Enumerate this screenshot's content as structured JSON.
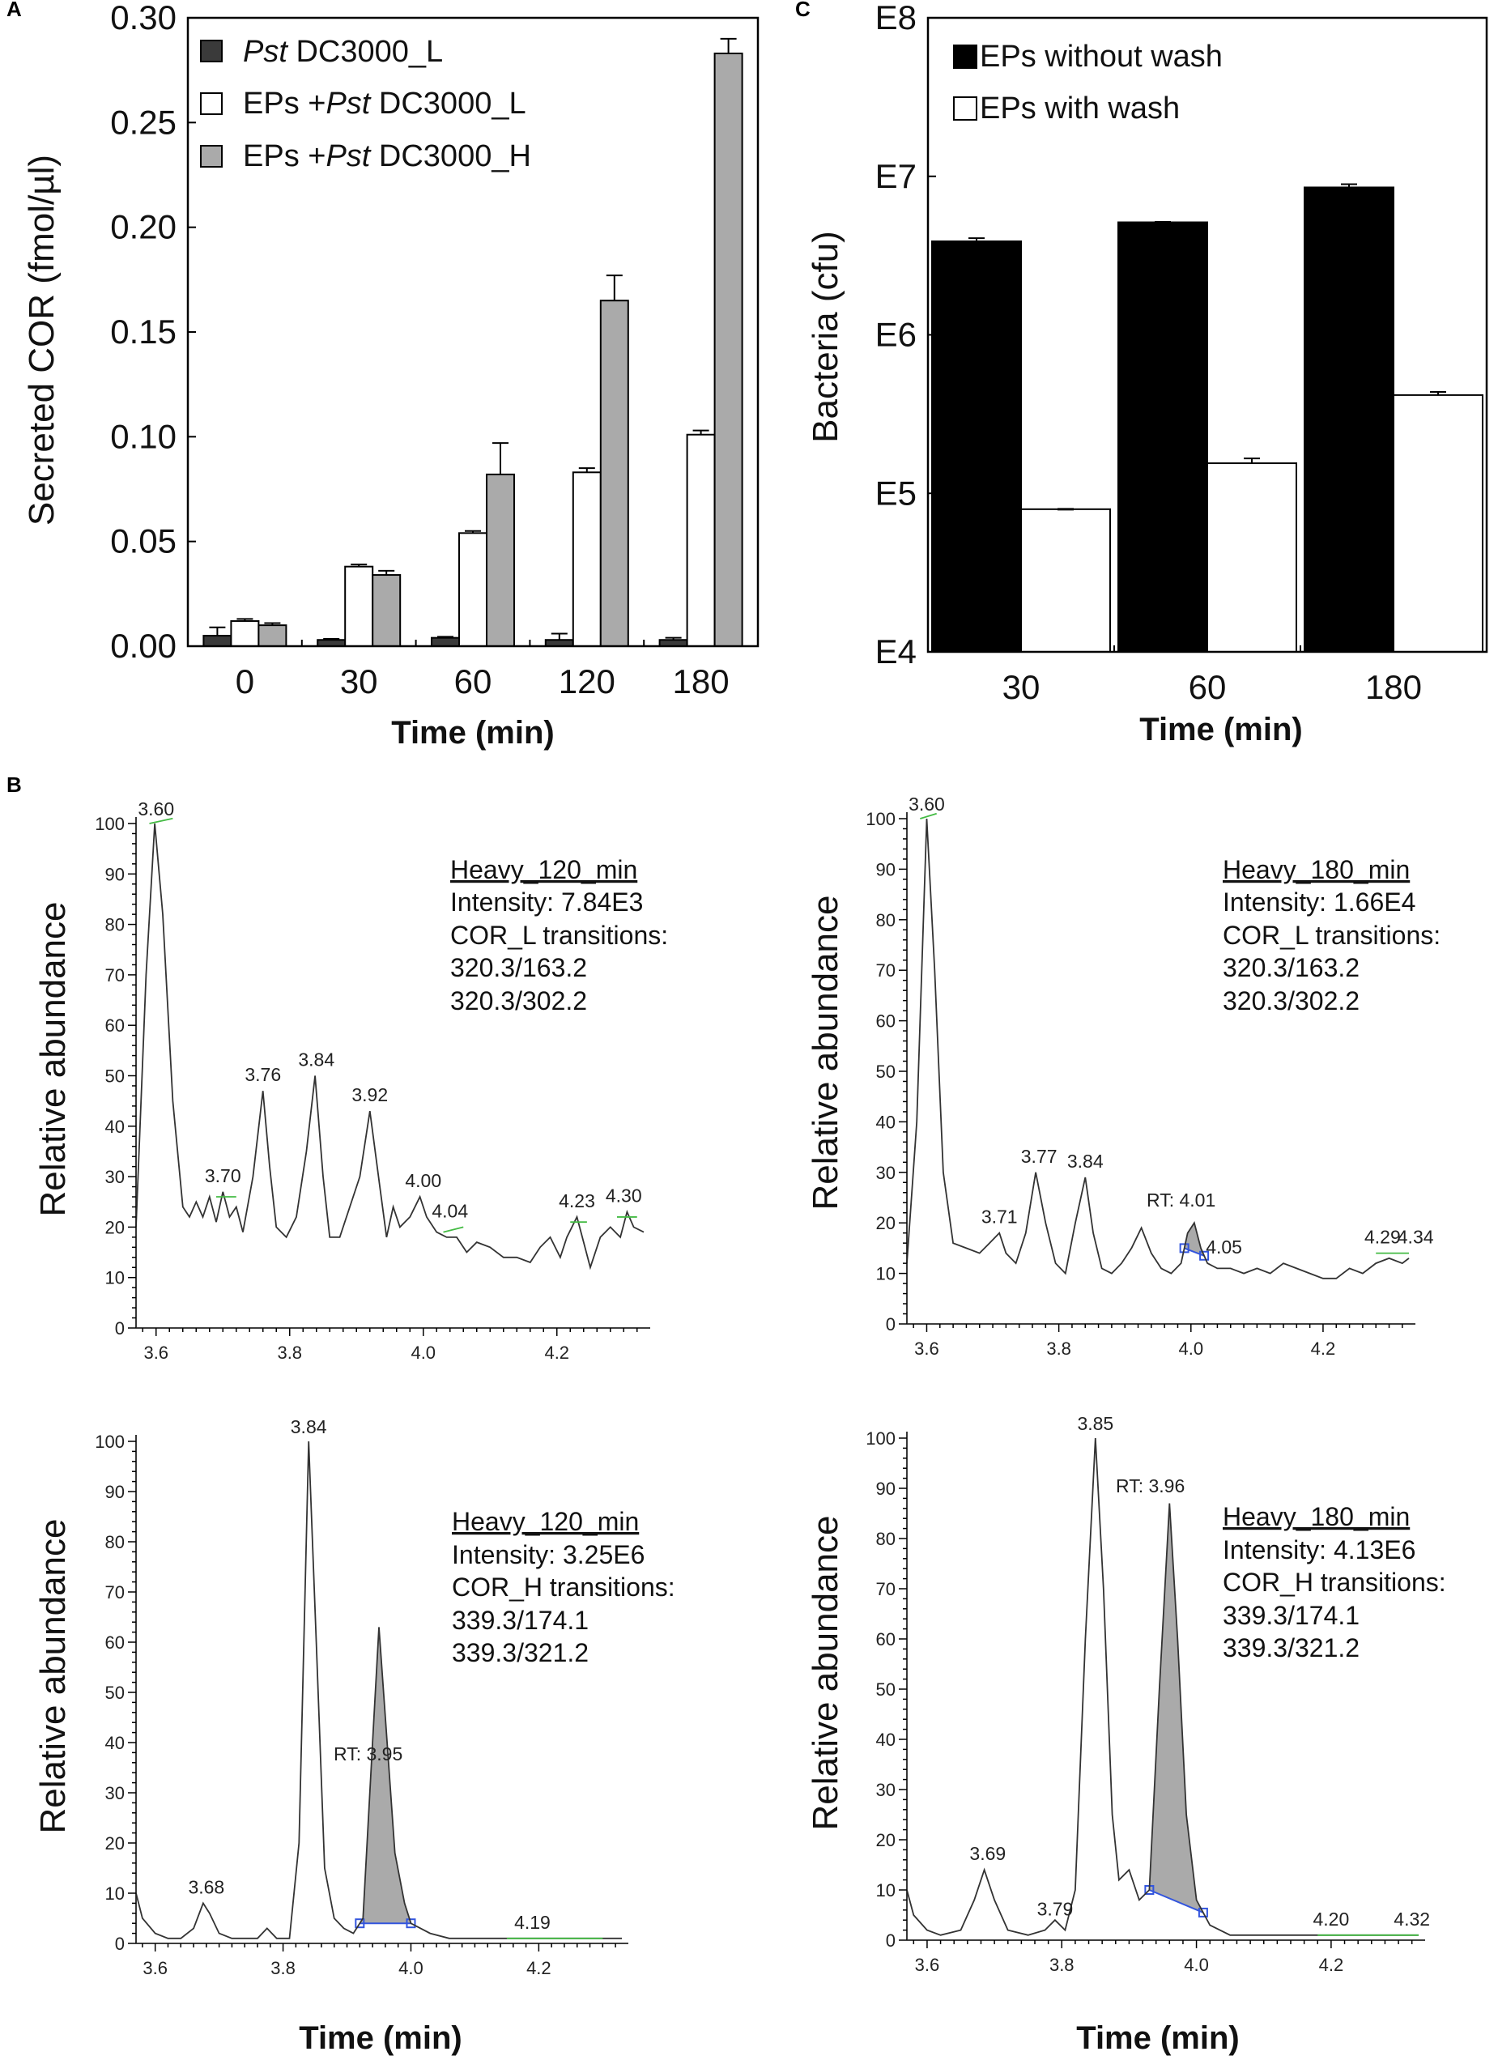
{
  "chart_data": [
    {
      "id": "A",
      "panel_label": "A",
      "type": "bar",
      "categories": [
        "0",
        "30",
        "60",
        "120",
        "180"
      ],
      "series": [
        {
          "name": "Pst DC3000_L",
          "color": "#3a3a3a",
          "values": [
            0.005,
            0.003,
            0.004,
            0.003,
            0.003
          ],
          "errors": [
            0.004,
            0.0005,
            0.0005,
            0.003,
            0.001
          ]
        },
        {
          "name": "EPs +Pst DC3000_L",
          "color": "#ffffff",
          "values": [
            0.012,
            0.038,
            0.054,
            0.083,
            0.101
          ],
          "errors": [
            0.001,
            0.001,
            0.001,
            0.002,
            0.002
          ]
        },
        {
          "name": "EPs +Pst DC3000_H",
          "color": "#aaaaaa",
          "values": [
            0.01,
            0.034,
            0.082,
            0.165,
            0.283
          ],
          "errors": [
            0.001,
            0.002,
            0.015,
            0.012,
            0.007
          ]
        }
      ],
      "legend": [
        {
          "italic": "Pst",
          "text": " DC3000_L"
        },
        {
          "prefix": "EPs +",
          "italic": "Pst",
          "text": " DC3000_L"
        },
        {
          "prefix": "EPs +",
          "italic": "Pst",
          "text": " DC3000_H"
        }
      ],
      "xlabel": "Time (min)",
      "ylabel": "Secreted COR (fmol/µl)",
      "ylim": [
        0,
        0.3
      ],
      "yticks": [
        "0.00",
        "0.05",
        "0.10",
        "0.15",
        "0.20",
        "0.25",
        "0.30"
      ]
    },
    {
      "id": "C",
      "panel_label": "C",
      "type": "bar",
      "scale": "log10",
      "categories": [
        "30",
        "60",
        "180"
      ],
      "series": [
        {
          "name": "EPs without wash",
          "color": "#000000",
          "values": [
            6.59,
            6.71,
            6.93
          ],
          "errors": [
            0.02,
            0.0,
            0.02
          ]
        },
        {
          "name": "EPs with wash",
          "color": "#ffffff",
          "values": [
            4.9,
            5.19,
            5.62
          ],
          "errors": [
            0.0,
            0.03,
            0.02
          ]
        }
      ],
      "xlabel": "Time (min)",
      "ylabel": "Bacteria (cfu)",
      "ylim": [
        4,
        8
      ],
      "yticks": [
        "E4",
        "E5",
        "E6",
        "E7",
        "E8"
      ]
    },
    {
      "id": "B1",
      "type": "line",
      "panel_label": "B",
      "xlim": [
        3.57,
        4.33
      ],
      "ylim": [
        0,
        100
      ],
      "xticks": [
        "3.6",
        "3.8",
        "4.0",
        "4.2"
      ],
      "yticks": [
        "0",
        "10",
        "20",
        "30",
        "40",
        "50",
        "60",
        "70",
        "80",
        "90",
        "100"
      ],
      "ylabel": "Relative abundance",
      "xlabel": "",
      "annotation": [
        "Heavy_120_min",
        "Intensity: 7.84E3",
        "COR_L transitions:",
        "320.3/163.2",
        "320.3/302.2"
      ],
      "peaks": [
        {
          "x": 3.6,
          "y": 100,
          "label": "3.60"
        },
        {
          "x": 3.7,
          "y": 27,
          "label": "3.70"
        },
        {
          "x": 3.76,
          "y": 47,
          "label": "3.76"
        },
        {
          "x": 3.84,
          "y": 50,
          "label": "3.84"
        },
        {
          "x": 3.92,
          "y": 43,
          "label": "3.92"
        },
        {
          "x": 4.0,
          "y": 26,
          "label": "4.00"
        },
        {
          "x": 4.04,
          "y": 20,
          "label": "4.04"
        },
        {
          "x": 4.23,
          "y": 22,
          "label": "4.23"
        },
        {
          "x": 4.3,
          "y": 23,
          "label": "4.30"
        }
      ],
      "trace": [
        [
          3.57,
          20
        ],
        [
          3.585,
          70
        ],
        [
          3.598,
          100
        ],
        [
          3.61,
          82
        ],
        [
          3.625,
          45
        ],
        [
          3.64,
          24
        ],
        [
          3.65,
          22
        ],
        [
          3.66,
          25
        ],
        [
          3.67,
          22
        ],
        [
          3.68,
          26
        ],
        [
          3.69,
          21
        ],
        [
          3.7,
          27
        ],
        [
          3.71,
          22
        ],
        [
          3.72,
          24
        ],
        [
          3.73,
          19
        ],
        [
          3.745,
          30
        ],
        [
          3.76,
          47
        ],
        [
          3.77,
          32
        ],
        [
          3.78,
          20
        ],
        [
          3.795,
          18
        ],
        [
          3.81,
          22
        ],
        [
          3.825,
          35
        ],
        [
          3.838,
          50
        ],
        [
          3.85,
          30
        ],
        [
          3.86,
          18
        ],
        [
          3.875,
          18
        ],
        [
          3.89,
          24
        ],
        [
          3.905,
          30
        ],
        [
          3.92,
          43
        ],
        [
          3.935,
          28
        ],
        [
          3.945,
          18
        ],
        [
          3.955,
          24
        ],
        [
          3.965,
          20
        ],
        [
          3.98,
          22
        ],
        [
          3.995,
          26
        ],
        [
          4.005,
          22
        ],
        [
          4.02,
          19
        ],
        [
          4.035,
          18
        ],
        [
          4.05,
          18
        ],
        [
          4.065,
          15
        ],
        [
          4.08,
          17
        ],
        [
          4.1,
          16
        ],
        [
          4.12,
          14
        ],
        [
          4.14,
          14
        ],
        [
          4.16,
          13
        ],
        [
          4.175,
          16
        ],
        [
          4.19,
          18
        ],
        [
          4.205,
          14
        ],
        [
          4.215,
          18
        ],
        [
          4.23,
          22
        ],
        [
          4.24,
          17
        ],
        [
          4.25,
          12
        ],
        [
          4.265,
          18
        ],
        [
          4.28,
          20
        ],
        [
          4.295,
          18
        ],
        [
          4.305,
          23
        ],
        [
          4.315,
          20
        ],
        [
          4.33,
          19
        ]
      ],
      "baselines": [
        [
          [
            3.59,
            100
          ],
          [
            3.625,
            101
          ]
        ],
        [
          [
            3.69,
            26
          ],
          [
            3.72,
            26
          ]
        ],
        [
          [
            4.03,
            19
          ],
          [
            4.06,
            20
          ]
        ],
        [
          [
            4.22,
            21
          ],
          [
            4.245,
            21
          ]
        ],
        [
          [
            4.29,
            22
          ],
          [
            4.32,
            22
          ]
        ]
      ]
    },
    {
      "id": "B2",
      "type": "line",
      "xlim": [
        3.57,
        4.33
      ],
      "ylim": [
        0,
        100
      ],
      "xticks": [
        "3.6",
        "3.8",
        "4.0",
        "4.2"
      ],
      "yticks": [
        "0",
        "10",
        "20",
        "30",
        "40",
        "50",
        "60",
        "70",
        "80",
        "90",
        "100"
      ],
      "ylabel": "Relative abundance",
      "xlabel": "",
      "annotation": [
        "Heavy_180_min",
        "Intensity: 1.66E4",
        "COR_L transitions:",
        "320.3/163.2",
        "320.3/302.2"
      ],
      "rt_label": "RT: 4.01",
      "shaded": {
        "from": 3.99,
        "to": 4.02
      },
      "peaks": [
        {
          "x": 3.6,
          "y": 100,
          "label": "3.60"
        },
        {
          "x": 3.71,
          "y": 18,
          "label": "3.71"
        },
        {
          "x": 3.77,
          "y": 30,
          "label": "3.77"
        },
        {
          "x": 3.84,
          "y": 29,
          "label": "3.84"
        },
        {
          "x": 4.05,
          "y": 12,
          "label": "4.05"
        },
        {
          "x": 4.29,
          "y": 14,
          "label": "4.29"
        },
        {
          "x": 4.34,
          "y": 14,
          "label": "4.34"
        }
      ],
      "trace": [
        [
          3.57,
          12
        ],
        [
          3.585,
          40
        ],
        [
          3.6,
          100
        ],
        [
          3.612,
          70
        ],
        [
          3.625,
          30
        ],
        [
          3.64,
          16
        ],
        [
          3.66,
          15
        ],
        [
          3.68,
          14
        ],
        [
          3.695,
          16
        ],
        [
          3.71,
          18
        ],
        [
          3.72,
          14
        ],
        [
          3.735,
          12
        ],
        [
          3.75,
          18
        ],
        [
          3.765,
          30
        ],
        [
          3.78,
          20
        ],
        [
          3.795,
          12
        ],
        [
          3.81,
          10
        ],
        [
          3.825,
          20
        ],
        [
          3.84,
          29
        ],
        [
          3.852,
          18
        ],
        [
          3.865,
          11
        ],
        [
          3.88,
          10
        ],
        [
          3.895,
          12
        ],
        [
          3.91,
          15
        ],
        [
          3.925,
          19
        ],
        [
          3.94,
          14
        ],
        [
          3.955,
          11
        ],
        [
          3.97,
          10
        ],
        [
          3.985,
          12
        ],
        [
          3.995,
          18
        ],
        [
          4.005,
          20
        ],
        [
          4.015,
          15
        ],
        [
          4.025,
          12
        ],
        [
          4.04,
          11
        ],
        [
          4.06,
          11
        ],
        [
          4.08,
          10
        ],
        [
          4.1,
          11
        ],
        [
          4.12,
          10
        ],
        [
          4.14,
          12
        ],
        [
          4.16,
          11
        ],
        [
          4.18,
          10
        ],
        [
          4.2,
          9
        ],
        [
          4.22,
          9
        ],
        [
          4.24,
          11
        ],
        [
          4.26,
          10
        ],
        [
          4.28,
          12
        ],
        [
          4.3,
          13
        ],
        [
          4.32,
          12
        ],
        [
          4.33,
          13
        ]
      ],
      "baselines": [
        [
          [
            3.59,
            100
          ],
          [
            3.615,
            101
          ]
        ],
        [
          [
            4.28,
            14
          ],
          [
            4.33,
            14
          ]
        ]
      ]
    },
    {
      "id": "B3",
      "type": "line",
      "xlim": [
        3.57,
        4.33
      ],
      "ylim": [
        0,
        100
      ],
      "xticks": [
        "3.6",
        "3.8",
        "4.0",
        "4.2"
      ],
      "yticks": [
        "0",
        "10",
        "20",
        "30",
        "40",
        "50",
        "60",
        "70",
        "80",
        "90",
        "100"
      ],
      "ylabel": "Relative abundance",
      "xlabel": "Time (min)",
      "annotation": [
        "Heavy_120_min",
        "Intensity: 3.25E6",
        "COR_H transitions:",
        "339.3/174.1",
        "339.3/321.2"
      ],
      "rt_label": "RT: 3.95",
      "shaded": {
        "from": 3.92,
        "to": 4.0
      },
      "peaks": [
        {
          "x": 3.68,
          "y": 8,
          "label": "3.68"
        },
        {
          "x": 3.84,
          "y": 100,
          "label": "3.84"
        },
        {
          "x": 4.19,
          "y": 1,
          "label": "4.19"
        }
      ],
      "trace": [
        [
          3.57,
          10
        ],
        [
          3.58,
          5
        ],
        [
          3.6,
          2
        ],
        [
          3.62,
          1
        ],
        [
          3.64,
          1
        ],
        [
          3.66,
          3
        ],
        [
          3.675,
          8
        ],
        [
          3.685,
          6
        ],
        [
          3.7,
          2
        ],
        [
          3.72,
          1
        ],
        [
          3.74,
          1
        ],
        [
          3.76,
          1
        ],
        [
          3.775,
          3
        ],
        [
          3.79,
          1
        ],
        [
          3.81,
          1
        ],
        [
          3.825,
          20
        ],
        [
          3.84,
          100
        ],
        [
          3.852,
          60
        ],
        [
          3.865,
          15
        ],
        [
          3.88,
          5
        ],
        [
          3.895,
          3
        ],
        [
          3.91,
          2
        ],
        [
          3.925,
          5
        ],
        [
          3.94,
          40
        ],
        [
          3.95,
          63
        ],
        [
          3.96,
          45
        ],
        [
          3.975,
          18
        ],
        [
          3.99,
          8
        ],
        [
          4.0,
          4
        ],
        [
          4.03,
          2
        ],
        [
          4.06,
          1
        ],
        [
          4.1,
          1
        ],
        [
          4.15,
          1
        ],
        [
          4.2,
          1
        ],
        [
          4.25,
          1
        ],
        [
          4.3,
          1
        ],
        [
          4.33,
          1
        ]
      ],
      "baselines": [
        [
          [
            4.15,
            1
          ],
          [
            4.3,
            1
          ]
        ]
      ]
    },
    {
      "id": "B4",
      "type": "line",
      "xlim": [
        3.57,
        4.33
      ],
      "ylim": [
        0,
        100
      ],
      "xticks": [
        "3.6",
        "3.8",
        "4.0",
        "4.2"
      ],
      "yticks": [
        "0",
        "10",
        "20",
        "30",
        "40",
        "50",
        "60",
        "70",
        "80",
        "90",
        "100"
      ],
      "ylabel": "Relative abundance",
      "xlabel": "Time (min)",
      "annotation": [
        "Heavy_180_min",
        "Intensity: 4.13E6",
        "COR_H transitions:",
        "339.3/174.1",
        "339.3/321.2"
      ],
      "rt_label": "RT: 3.96",
      "shaded": {
        "from": 3.93,
        "to": 4.01
      },
      "peaks": [
        {
          "x": 3.69,
          "y": 14,
          "label": "3.69"
        },
        {
          "x": 3.79,
          "y": 3,
          "label": "3.79"
        },
        {
          "x": 3.85,
          "y": 100,
          "label": "3.85"
        },
        {
          "x": 4.2,
          "y": 1,
          "label": "4.20"
        },
        {
          "x": 4.32,
          "y": 1,
          "label": "4.32"
        }
      ],
      "trace": [
        [
          3.57,
          10
        ],
        [
          3.58,
          5
        ],
        [
          3.6,
          2
        ],
        [
          3.62,
          1
        ],
        [
          3.65,
          2
        ],
        [
          3.67,
          8
        ],
        [
          3.685,
          14
        ],
        [
          3.7,
          8
        ],
        [
          3.72,
          2
        ],
        [
          3.75,
          1
        ],
        [
          3.775,
          2
        ],
        [
          3.79,
          4
        ],
        [
          3.805,
          2
        ],
        [
          3.82,
          10
        ],
        [
          3.835,
          60
        ],
        [
          3.85,
          100
        ],
        [
          3.862,
          70
        ],
        [
          3.875,
          25
        ],
        [
          3.885,
          12
        ],
        [
          3.9,
          14
        ],
        [
          3.915,
          8
        ],
        [
          3.93,
          10
        ],
        [
          3.945,
          50
        ],
        [
          3.96,
          87
        ],
        [
          3.972,
          60
        ],
        [
          3.985,
          25
        ],
        [
          4.0,
          8
        ],
        [
          4.02,
          3
        ],
        [
          4.05,
          1
        ],
        [
          4.1,
          1
        ],
        [
          4.15,
          1
        ],
        [
          4.2,
          1
        ],
        [
          4.25,
          1
        ],
        [
          4.3,
          1
        ],
        [
          4.33,
          1
        ]
      ],
      "baselines": [
        [
          [
            4.18,
            1
          ],
          [
            4.33,
            1
          ]
        ]
      ]
    }
  ]
}
